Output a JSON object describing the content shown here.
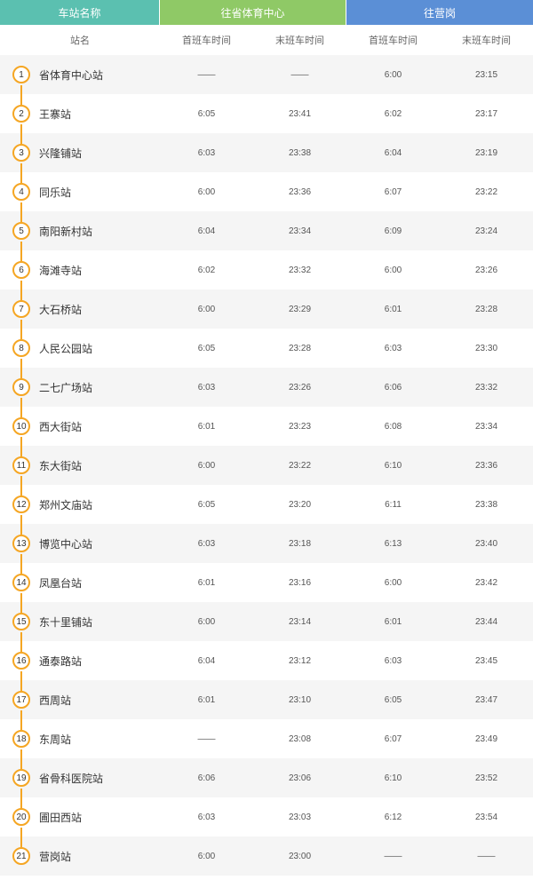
{
  "headers": {
    "station": "车站名称",
    "direction1": "往省体育中心",
    "direction2": "往营岗"
  },
  "subheaders": {
    "name": "站名",
    "first1": "首班车时间",
    "last1": "末班车时间",
    "first2": "首班车时间",
    "last2": "末班车时间"
  },
  "colors": {
    "teal": "#5bc0b0",
    "green": "#8fc966",
    "blue": "#5b8fd6",
    "orange": "#f5a623",
    "evenRow": "#f5f5f5",
    "oddRow": "#ffffff"
  },
  "stations": [
    {
      "num": "1",
      "name": "省体育中心站",
      "f1": "——",
      "l1": "——",
      "f2": "6:00",
      "l2": "23:15"
    },
    {
      "num": "2",
      "name": "王寨站",
      "f1": "6:05",
      "l1": "23:41",
      "f2": "6:02",
      "l2": "23:17"
    },
    {
      "num": "3",
      "name": "兴隆铺站",
      "f1": "6:03",
      "l1": "23:38",
      "f2": "6:04",
      "l2": "23:19"
    },
    {
      "num": "4",
      "name": "同乐站",
      "f1": "6:00",
      "l1": "23:36",
      "f2": "6:07",
      "l2": "23:22"
    },
    {
      "num": "5",
      "name": "南阳新村站",
      "f1": "6:04",
      "l1": "23:34",
      "f2": "6:09",
      "l2": "23:24"
    },
    {
      "num": "6",
      "name": "海滩寺站",
      "f1": "6:02",
      "l1": "23:32",
      "f2": "6:00",
      "l2": "23:26"
    },
    {
      "num": "7",
      "name": "大石桥站",
      "f1": "6:00",
      "l1": "23:29",
      "f2": "6:01",
      "l2": "23:28"
    },
    {
      "num": "8",
      "name": "人民公园站",
      "f1": "6:05",
      "l1": "23:28",
      "f2": "6:03",
      "l2": "23:30"
    },
    {
      "num": "9",
      "name": "二七广场站",
      "f1": "6:03",
      "l1": "23:26",
      "f2": "6:06",
      "l2": "23:32"
    },
    {
      "num": "10",
      "name": "西大街站",
      "f1": "6:01",
      "l1": "23:23",
      "f2": "6:08",
      "l2": "23:34"
    },
    {
      "num": "11",
      "name": "东大街站",
      "f1": "6:00",
      "l1": "23:22",
      "f2": "6:10",
      "l2": "23:36"
    },
    {
      "num": "12",
      "name": "郑州文庙站",
      "f1": "6:05",
      "l1": "23:20",
      "f2": "6:11",
      "l2": "23:38"
    },
    {
      "num": "13",
      "name": "博览中心站",
      "f1": "6:03",
      "l1": "23:18",
      "f2": "6:13",
      "l2": "23:40"
    },
    {
      "num": "14",
      "name": "凤凰台站",
      "f1": "6:01",
      "l1": "23:16",
      "f2": "6:00",
      "l2": "23:42"
    },
    {
      "num": "15",
      "name": "东十里铺站",
      "f1": "6:00",
      "l1": "23:14",
      "f2": "6:01",
      "l2": "23:44"
    },
    {
      "num": "16",
      "name": "通泰路站",
      "f1": "6:04",
      "l1": "23:12",
      "f2": "6:03",
      "l2": "23:45"
    },
    {
      "num": "17",
      "name": "西周站",
      "f1": "6:01",
      "l1": "23:10",
      "f2": "6:05",
      "l2": "23:47"
    },
    {
      "num": "18",
      "name": "东周站",
      "f1": "——",
      "l1": "23:08",
      "f2": "6:07",
      "l2": "23:49"
    },
    {
      "num": "19",
      "name": "省骨科医院站",
      "f1": "6:06",
      "l1": "23:06",
      "f2": "6:10",
      "l2": "23:52"
    },
    {
      "num": "20",
      "name": "圃田西站",
      "f1": "6:03",
      "l1": "23:03",
      "f2": "6:12",
      "l2": "23:54"
    },
    {
      "num": "21",
      "name": "营岗站",
      "f1": "6:00",
      "l1": "23:00",
      "f2": "——",
      "l2": "——"
    }
  ]
}
